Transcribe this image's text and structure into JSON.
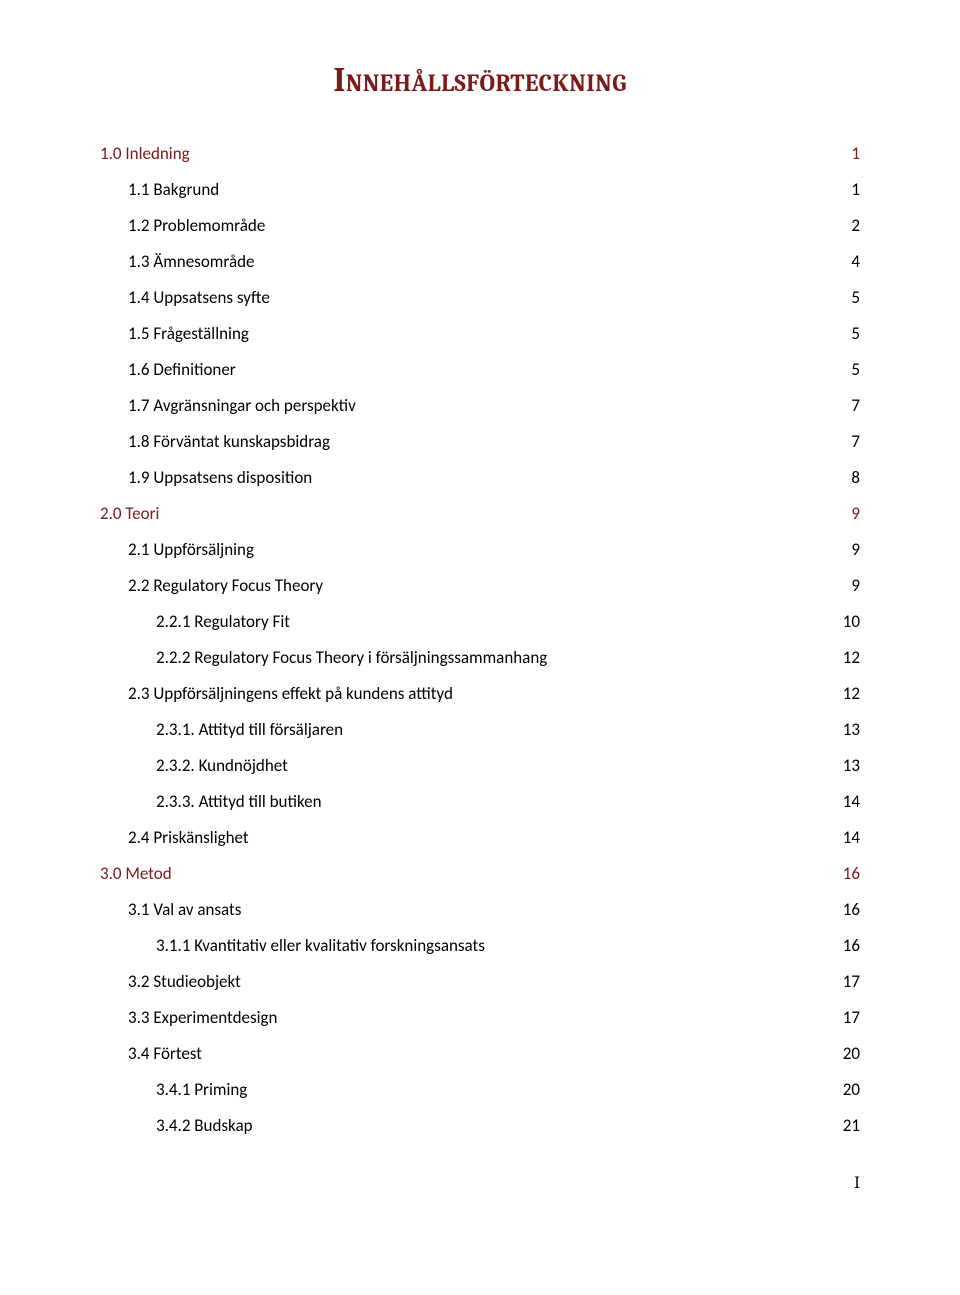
{
  "title": "Innehållsförteckning",
  "title_color": "#7a1a1a",
  "title_fontsize": 34,
  "heading_color": "#7a1a1a",
  "body_color": "#000000",
  "body_fontsize": 17,
  "line_height": 36,
  "indent_step": 28,
  "base_indent": 0,
  "heading_indent": 0,
  "page_number": "I",
  "entries": [
    {
      "label": "1.0 Inledning",
      "page": "1",
      "level": 0,
      "heading": true
    },
    {
      "label": "1.1 Bakgrund",
      "page": "1",
      "level": 1,
      "heading": false
    },
    {
      "label": "1.2 Problemområde",
      "page": "2",
      "level": 1,
      "heading": false
    },
    {
      "label": "1.3 Ämnesområde",
      "page": "4",
      "level": 1,
      "heading": false
    },
    {
      "label": "1.4 Uppsatsens syfte",
      "page": "5",
      "level": 1,
      "heading": false
    },
    {
      "label": "1.5 Frågeställning",
      "page": "5",
      "level": 1,
      "heading": false
    },
    {
      "label": "1.6 Definitioner",
      "page": "5",
      "level": 1,
      "heading": false
    },
    {
      "label": "1.7 Avgränsningar och perspektiv",
      "page": "7",
      "level": 1,
      "heading": false
    },
    {
      "label": "1.8 Förväntat kunskapsbidrag",
      "page": "7",
      "level": 1,
      "heading": false
    },
    {
      "label": "1.9 Uppsatsens disposition",
      "page": "8",
      "level": 1,
      "heading": false
    },
    {
      "label": "2.0 Teori",
      "page": "9",
      "level": 0,
      "heading": true
    },
    {
      "label": "2.1 Uppförsäljning",
      "page": "9",
      "level": 1,
      "heading": false
    },
    {
      "label": "2.2 Regulatory Focus Theory",
      "page": "9",
      "level": 1,
      "heading": false
    },
    {
      "label": "2.2.1 Regulatory Fit",
      "page": "10",
      "level": 2,
      "heading": false
    },
    {
      "label": "2.2.2 Regulatory Focus Theory i försäljningssammanhang",
      "page": "12",
      "level": 2,
      "heading": false
    },
    {
      "label": "2.3 Uppförsäljningens effekt på kundens attityd",
      "page": "12",
      "level": 1,
      "heading": false
    },
    {
      "label": "2.3.1. Attityd till försäljaren",
      "page": "13",
      "level": 2,
      "heading": false
    },
    {
      "label": "2.3.2. Kundnöjdhet",
      "page": "13",
      "level": 2,
      "heading": false
    },
    {
      "label": "2.3.3. Attityd till butiken",
      "page": "14",
      "level": 2,
      "heading": false
    },
    {
      "label": "2.4 Priskänslighet",
      "page": "14",
      "level": 1,
      "heading": false
    },
    {
      "label": "3.0 Metod",
      "page": "16",
      "level": 0,
      "heading": true
    },
    {
      "label": "3.1 Val av ansats",
      "page": "16",
      "level": 1,
      "heading": false
    },
    {
      "label": "3.1.1 Kvantitativ eller kvalitativ forskningsansats",
      "page": "16",
      "level": 2,
      "heading": false
    },
    {
      "label": "3.2 Studieobjekt",
      "page": "17",
      "level": 1,
      "heading": false
    },
    {
      "label": "3.3 Experimentdesign",
      "page": "17",
      "level": 1,
      "heading": false
    },
    {
      "label": "3.4 Förtest",
      "page": "20",
      "level": 1,
      "heading": false
    },
    {
      "label": "3.4.1 Priming",
      "page": "20",
      "level": 2,
      "heading": false
    },
    {
      "label": "3.4.2 Budskap",
      "page": "21",
      "level": 2,
      "heading": false
    }
  ]
}
